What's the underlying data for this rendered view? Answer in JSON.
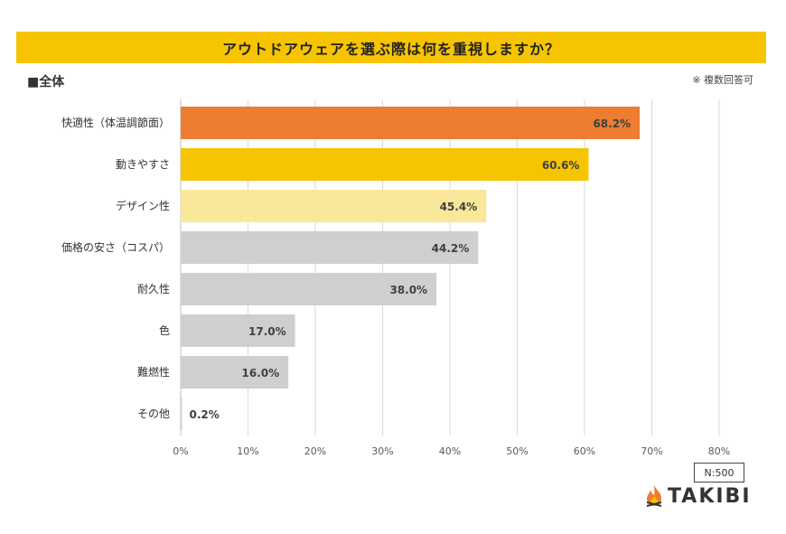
{
  "header": {
    "title": "アウトドアウェアを選ぶ際は何を重視しますか？",
    "subtitle": "■全体",
    "note": "※ 複数回答可"
  },
  "footer": {
    "sample": "N:500",
    "brand": "TAKIBI",
    "logo_icon": "flame-icon"
  },
  "chart_data": {
    "type": "bar",
    "orientation": "horizontal",
    "categories": [
      "快適性（体温調節面）",
      "動きやすさ",
      "デザイン性",
      "価格の安さ（コスパ）",
      "耐久性",
      "色",
      "難燃性",
      "その他"
    ],
    "values": [
      68.2,
      60.6,
      45.4,
      44.2,
      38.0,
      17.0,
      16.0,
      0.2
    ],
    "value_labels": [
      "68.2%",
      "60.6%",
      "45.4%",
      "44.2%",
      "38.0%",
      "17.0%",
      "16.0%",
      "0.2%"
    ],
    "colors": [
      "#ec7d31",
      "#f6c400",
      "#f9e79a",
      "#cfcfcf",
      "#cfcfcf",
      "#cfcfcf",
      "#cfcfcf",
      "#cfcfcf"
    ],
    "xlim": [
      0,
      80
    ],
    "xticks": [
      0,
      10,
      20,
      30,
      40,
      50,
      60,
      70,
      80
    ],
    "xtick_labels": [
      "0%",
      "10%",
      "20%",
      "30%",
      "40%",
      "50%",
      "60%",
      "70%",
      "80%"
    ],
    "grid": true,
    "title": "アウトドアウェアを選ぶ際は何を重視しますか？",
    "xlabel": "",
    "ylabel": ""
  }
}
